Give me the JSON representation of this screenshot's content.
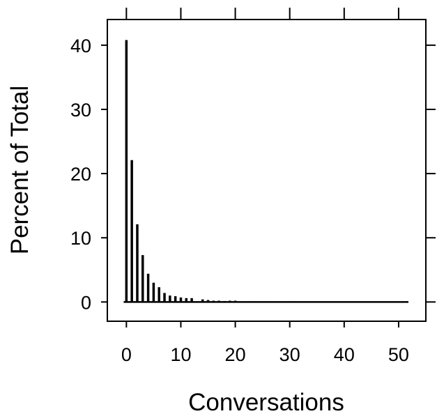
{
  "chart_data": {
    "type": "bar",
    "title": "",
    "xlabel": "Conversations",
    "ylabel": "Percent of Total",
    "xlim": [
      -3.5,
      55
    ],
    "ylim": [
      -3,
      44
    ],
    "x_ticks": [
      0,
      10,
      20,
      30,
      40,
      50
    ],
    "y_ticks": [
      0,
      10,
      20,
      30,
      40
    ],
    "grid": false,
    "x": [
      0,
      1,
      2,
      3,
      4,
      5,
      6,
      7,
      8,
      9,
      10,
      11,
      12,
      13,
      14,
      15,
      16,
      17,
      18,
      19,
      20,
      21,
      22,
      23,
      24,
      25,
      26,
      27,
      28,
      29,
      30,
      31,
      32,
      33,
      34,
      35,
      36,
      37,
      38,
      39,
      40,
      41,
      42,
      43,
      44,
      45,
      46,
      47,
      48,
      49,
      50,
      51
    ],
    "values": [
      40.8,
      22.1,
      12.1,
      7.3,
      4.4,
      3.0,
      2.3,
      1.4,
      1.0,
      0.9,
      0.7,
      0.6,
      0.6,
      0.1,
      0.4,
      0.3,
      0.2,
      0.2,
      0.15,
      0.2,
      0.2,
      0,
      0,
      0.1,
      0,
      0.1,
      0.1,
      0,
      0,
      0,
      0.1,
      0,
      0,
      0,
      0,
      0,
      0,
      0,
      0,
      0,
      0.1,
      0,
      0,
      0,
      0,
      0,
      0,
      0,
      0,
      0,
      0,
      0.1
    ],
    "bar_color": "#000000"
  }
}
